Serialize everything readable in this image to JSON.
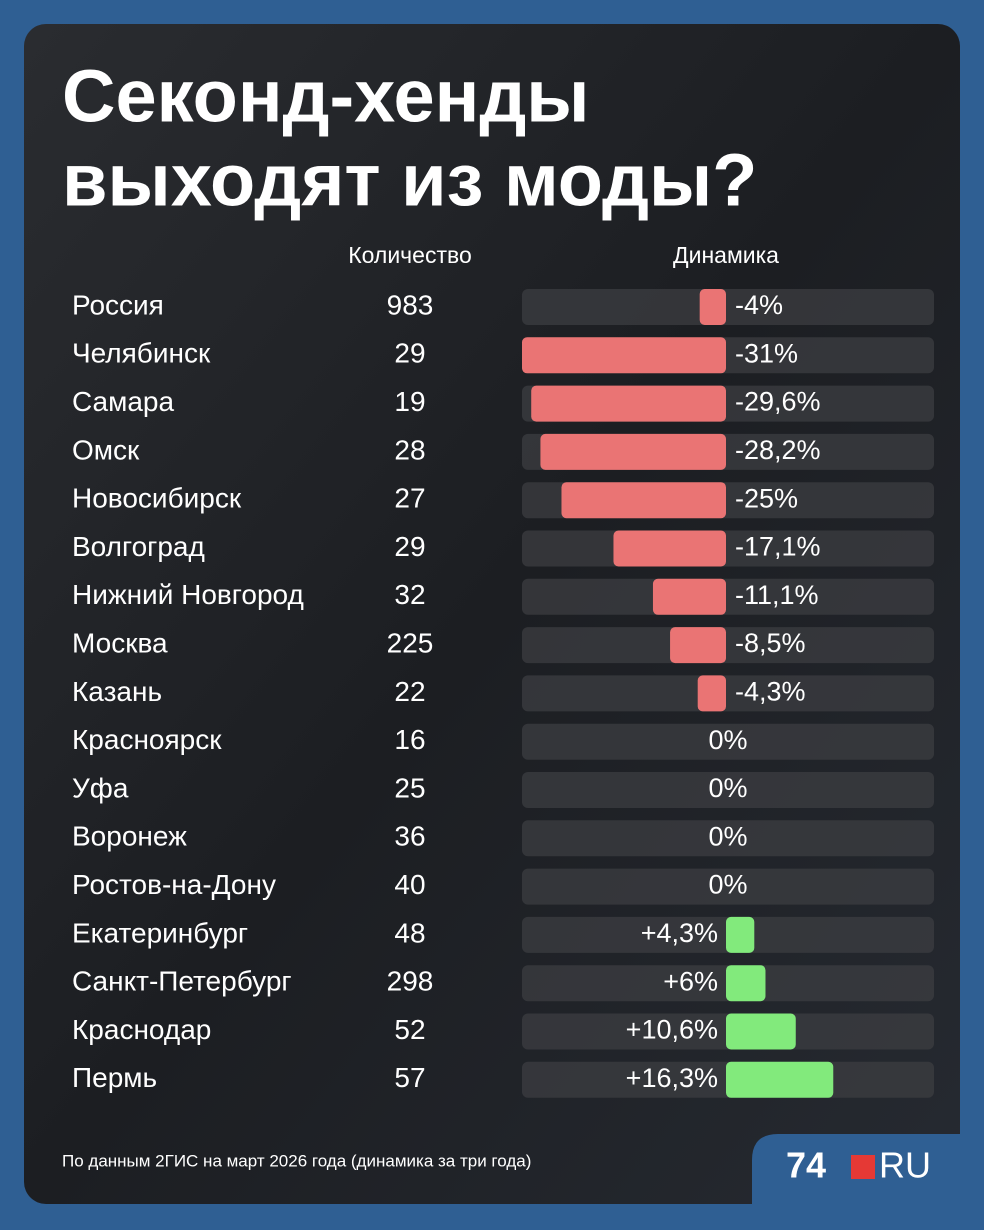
{
  "header": {
    "title_lines": [
      "Секонд-хенды",
      "выходят из моды?"
    ]
  },
  "table": {
    "columns": [
      "Количество",
      "Динамика"
    ],
    "rows": [
      {
        "city": "Россия",
        "count": "983",
        "change": -4,
        "change_label": "-4%"
      },
      {
        "city": "Челябинск",
        "count": "29",
        "change": -31,
        "change_label": "-31%"
      },
      {
        "city": "Самара",
        "count": "19",
        "change": -29.6,
        "change_label": "-29,6%"
      },
      {
        "city": "Омск",
        "count": "28",
        "change": -28.2,
        "change_label": "-28,2%"
      },
      {
        "city": "Новосибирск",
        "count": "27",
        "change": -25,
        "change_label": "-25%"
      },
      {
        "city": "Волгоград",
        "count": "29",
        "change": -17.1,
        "change_label": "-17,1%"
      },
      {
        "city": "Нижний Новгород",
        "count": "32",
        "change": -11.1,
        "change_label": "-11,1%"
      },
      {
        "city": "Москва",
        "count": "225",
        "change": -8.5,
        "change_label": "-8,5%"
      },
      {
        "city": "Казань",
        "count": "22",
        "change": -4.3,
        "change_label": "-4,3%"
      },
      {
        "city": "Красноярск",
        "count": "16",
        "change": 0,
        "change_label": "0%"
      },
      {
        "city": "Уфа",
        "count": "25",
        "change": 0,
        "change_label": "0%"
      },
      {
        "city": "Воронеж",
        "count": "36",
        "change": 0,
        "change_label": "0%"
      },
      {
        "city": "Ростов-на-Дону",
        "count": "40",
        "change": 0,
        "change_label": "0%"
      },
      {
        "city": "Екатеринбург",
        "count": "48",
        "change": 4.3,
        "change_label": "+4,3%"
      },
      {
        "city": "Санкт-Петербург",
        "count": "298",
        "change": 6,
        "change_label": "+6%"
      },
      {
        "city": "Краснодар",
        "count": "52",
        "change": 10.6,
        "change_label": "+10,6%"
      },
      {
        "city": "Пермь",
        "count": "57",
        "change": 16.3,
        "change_label": "+16,3%"
      }
    ],
    "negative_color": "#ea7474",
    "positive_color": "#82ea7c"
  },
  "footer": {
    "source": "По данным 2ГИС на март 2026 года (динамика за три года)",
    "logo": [
      "74",
      "RU"
    ]
  }
}
